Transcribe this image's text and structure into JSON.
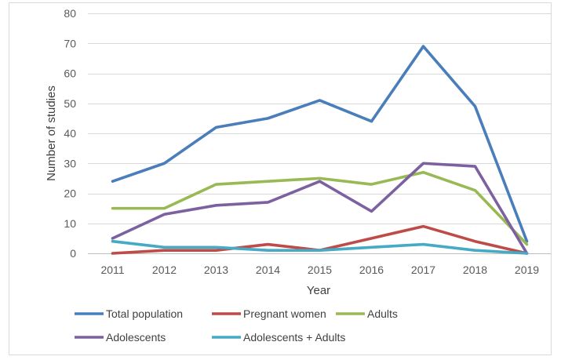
{
  "chart_data": {
    "type": "line",
    "title": "",
    "xlabel": "Year",
    "ylabel": "Number of studies",
    "categories": [
      "2011",
      "2012",
      "2013",
      "2014",
      "2015",
      "2016",
      "2017",
      "2018",
      "2019"
    ],
    "ylim": [
      0,
      80
    ],
    "yticks": [
      0,
      10,
      20,
      30,
      40,
      50,
      60,
      70,
      80
    ],
    "grid": "horizontal",
    "legend_position": "bottom",
    "series": [
      {
        "name": "Total population",
        "color": "#4a7ebb",
        "values": [
          24,
          30,
          42,
          45,
          51,
          44,
          69,
          49,
          4
        ]
      },
      {
        "name": "Pregnant women",
        "color": "#be4b48",
        "values": [
          0,
          1,
          1,
          3,
          1,
          5,
          9,
          4,
          0
        ]
      },
      {
        "name": "Adults",
        "color": "#98b954",
        "values": [
          15,
          15,
          23,
          24,
          25,
          23,
          27,
          21,
          3
        ]
      },
      {
        "name": "Adolescents",
        "color": "#7d60a0",
        "values": [
          5,
          13,
          16,
          17,
          24,
          14,
          30,
          29,
          0
        ]
      },
      {
        "name": "Adolescents + Adults",
        "color": "#46aac5",
        "values": [
          4,
          2,
          2,
          1,
          1,
          2,
          3,
          1,
          0
        ]
      }
    ]
  }
}
